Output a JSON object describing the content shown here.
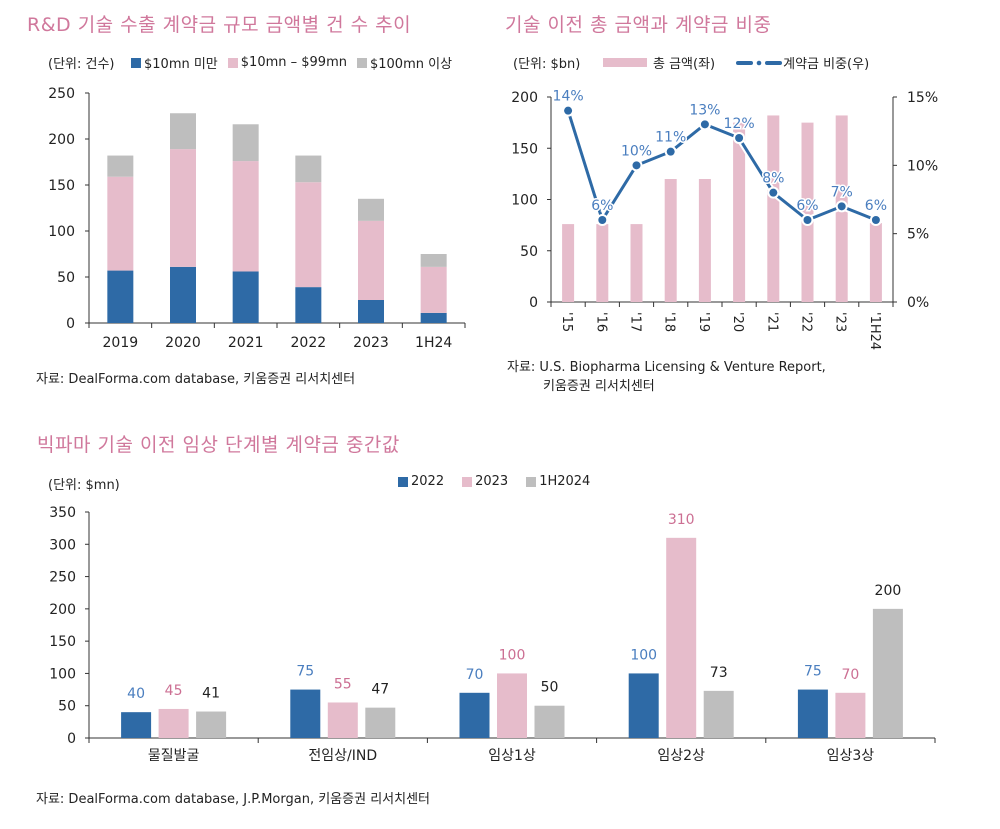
{
  "colors": {
    "blue": "#2e6aa6",
    "pink": "#e6bccb",
    "gray": "#bebebe",
    "title": "#d0789c",
    "label_blue": "#4a7ebf",
    "label_pink": "#cc6f93",
    "label_dark": "#222222"
  },
  "chart_data": [
    {
      "id": "chart1",
      "type": "bar",
      "stacked": true,
      "title": "R&D 기술 수출 계약금 규모 금액별 건 수 추이",
      "unit_label": "(단위: 건수)",
      "categories": [
        "2019",
        "2020",
        "2021",
        "2022",
        "2023",
        "1H24"
      ],
      "series": [
        {
          "name": "$10mn 미만",
          "color": "#2e6aa6",
          "values": [
            57,
            61,
            56,
            39,
            25,
            11
          ]
        },
        {
          "name": "$10mn – $99mn",
          "color": "#e6bccb",
          "values": [
            102,
            128,
            120,
            114,
            86,
            50
          ]
        },
        {
          "name": "$100mn 이상",
          "color": "#bebebe",
          "values": [
            23,
            39,
            40,
            29,
            24,
            14
          ]
        }
      ],
      "xlabel": "",
      "ylabel": "",
      "ylim": [
        0,
        250
      ],
      "yticks": [
        0,
        50,
        100,
        150,
        200,
        250
      ],
      "grid": false,
      "legend": "top",
      "source": "자료: DealForma.com database,  키움증권  리서치센터"
    },
    {
      "id": "chart2",
      "type": "bar+line",
      "title": "기술 이전 총 금액과 계약금 비중",
      "unit_label": "(단위: $bn)",
      "categories": [
        "'15",
        "'16",
        "'17",
        "'18",
        "'19",
        "'20",
        "'21",
        "'22",
        "'23",
        "'1H24"
      ],
      "series": [
        {
          "name": "총 금액(좌)",
          "type": "bar",
          "axis": "left",
          "color": "#e6bccb",
          "values": [
            76,
            76,
            76,
            120,
            120,
            175,
            182,
            175,
            182,
            77
          ]
        },
        {
          "name": "계약금 비중(우)",
          "type": "line",
          "axis": "right",
          "color": "#2e6aa6",
          "values": [
            14,
            6,
            10,
            11,
            13,
            12,
            8,
            6,
            7,
            6
          ],
          "labels": [
            "14%",
            "6%",
            "10%",
            "11%",
            "13%",
            "12%",
            "8%",
            "6%",
            "7%",
            "6%"
          ]
        }
      ],
      "ylim_left": [
        0,
        200
      ],
      "yticks_left": [
        0,
        50,
        100,
        150,
        200
      ],
      "ylim_right": [
        0,
        15
      ],
      "yticks_right": [
        "0%",
        "5%",
        "10%",
        "15%"
      ],
      "yticks_right_values": [
        0,
        5,
        10,
        15
      ],
      "grid": false,
      "legend": "top",
      "source_line1": "자료: U.S. Biopharma Licensing & Venture Report,",
      "source_line2": "키움증권  리서치센터"
    },
    {
      "id": "chart3",
      "type": "bar",
      "title": "빅파마 기술 이전 임상 단계별 계약금 중간값",
      "unit_label": "(단위: $mn)",
      "categories": [
        "물질발굴",
        "전임상/IND",
        "임상1상",
        "임상2상",
        "임상3상"
      ],
      "series": [
        {
          "name": "2022",
          "color": "#2e6aa6",
          "label_color": "#4a7ebf",
          "values": [
            40,
            75,
            70,
            100,
            75
          ]
        },
        {
          "name": "2023",
          "color": "#e6bccb",
          "label_color": "#cc6f93",
          "values": [
            45,
            55,
            100,
            310,
            70
          ]
        },
        {
          "name": "1H2024",
          "color": "#bebebe",
          "label_color": "#222222",
          "values": [
            41,
            47,
            50,
            73,
            200
          ]
        }
      ],
      "ylim": [
        0,
        350
      ],
      "yticks": [
        0,
        50,
        100,
        150,
        200,
        250,
        300,
        350
      ],
      "grid": false,
      "legend": "top-right",
      "source": "자료: DealForma.com database, J.P.Morgan,  키움증권  리서치센터"
    }
  ]
}
